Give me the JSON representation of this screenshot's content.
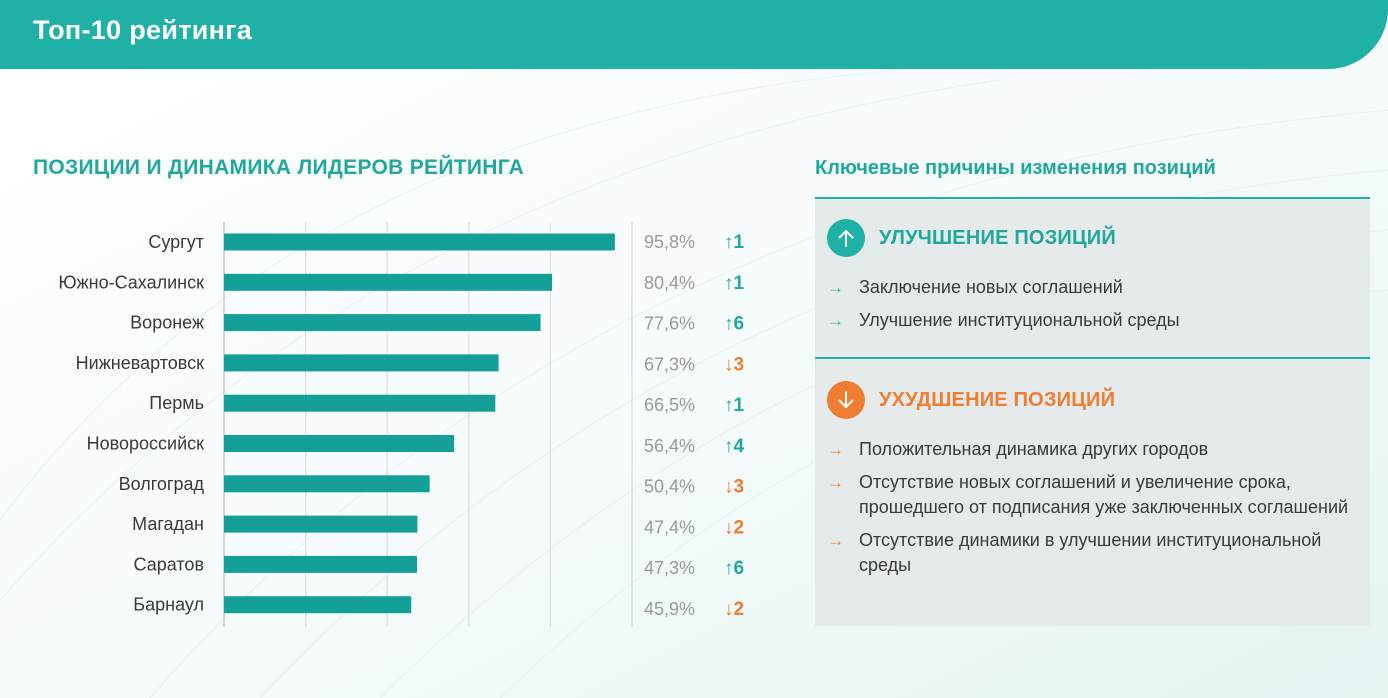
{
  "header": {
    "title": "Топ-10 рейтинга"
  },
  "chart_section": {
    "title": "ПОЗИЦИИ И ДИНАМИКА ЛИДЕРОВ РЕЙТИНГА"
  },
  "chart_data": {
    "type": "bar",
    "orientation": "horizontal",
    "categories": [
      "Сургут",
      "Южно-Сахалинск",
      "Воронеж",
      "Нижневартовск",
      "Пермь",
      "Новороссийск",
      "Волгоград",
      "Магадан",
      "Саратов",
      "Барнаул"
    ],
    "values": [
      95.8,
      80.4,
      77.6,
      67.3,
      66.5,
      56.4,
      50.4,
      47.4,
      47.3,
      45.9
    ],
    "value_labels": [
      "95,8%",
      "80,4%",
      "77,6%",
      "67,3%",
      "66,5%",
      "56,4%",
      "50,4%",
      "47,4%",
      "47,3%",
      "45,9%"
    ],
    "changes": [
      {
        "direction": "up",
        "label": "↑1"
      },
      {
        "direction": "up",
        "label": "↑1"
      },
      {
        "direction": "up",
        "label": "↑6"
      },
      {
        "direction": "down",
        "label": "↓3"
      },
      {
        "direction": "up",
        "label": "↑1"
      },
      {
        "direction": "up",
        "label": "↑4"
      },
      {
        "direction": "down",
        "label": "↓3"
      },
      {
        "direction": "down",
        "label": "↓2"
      },
      {
        "direction": "up",
        "label": "↑6"
      },
      {
        "direction": "down",
        "label": "↓2"
      }
    ],
    "xlim": [
      0,
      100
    ],
    "grid": true,
    "legend": "none",
    "bar_color": "#14a098"
  },
  "colors": {
    "accent": "#1fb0a6",
    "up": "#1fa99c",
    "down": "#ef7d32"
  },
  "reasons": {
    "title": "Ключевые причины изменения позиций",
    "improvement": {
      "icon": "arrow-up-icon",
      "title": "УЛУЧШЕНИЕ ПОЗИЦИЙ",
      "items": [
        "Заключение новых соглашений",
        "Улучшение институциональной среды"
      ]
    },
    "decline": {
      "icon": "arrow-down-icon",
      "title": "УХУДШЕНИЕ ПОЗИЦИЙ",
      "items": [
        "Положительная динамика других городов",
        "Отсутствие новых соглашений и увеличение срока, прошедшего от подписания уже заключенных соглашений",
        "Отсутствие динамики в улучшении институциональной среды"
      ]
    }
  }
}
